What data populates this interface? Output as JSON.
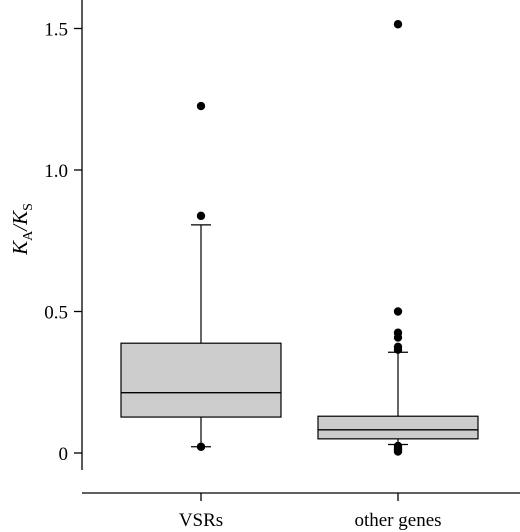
{
  "chart_data": {
    "type": "box",
    "title": "",
    "xlabel": "",
    "ylabel": {
      "main1": "K",
      "sub1": "A",
      "slash": "/",
      "main2": "K",
      "sub2": "S"
    },
    "ylim": [
      0,
      1.6
    ],
    "yticks": [
      0,
      0.5,
      1.0,
      1.5
    ],
    "ytick_labels": [
      "0",
      "0.5",
      "1.0",
      "1.5"
    ],
    "categories": [
      "VSRs",
      "other genes"
    ],
    "boxes": [
      {
        "name": "VSRs",
        "whisker_low": 0.022,
        "q1": 0.127,
        "median": 0.213,
        "q3": 0.388,
        "whisker_high": 0.806,
        "outliers": [
          0.022,
          0.838,
          1.226
        ]
      },
      {
        "name": "other genes",
        "whisker_low": 0.03,
        "q1": 0.05,
        "median": 0.082,
        "q3": 0.13,
        "whisker_high": 0.356,
        "outliers": [
          0.005,
          0.012,
          0.018,
          0.025,
          0.365,
          0.375,
          0.408,
          0.425,
          0.5,
          1.515
        ]
      }
    ],
    "box_fill": "#cccccc",
    "line_color": "#000000",
    "grid": false
  }
}
